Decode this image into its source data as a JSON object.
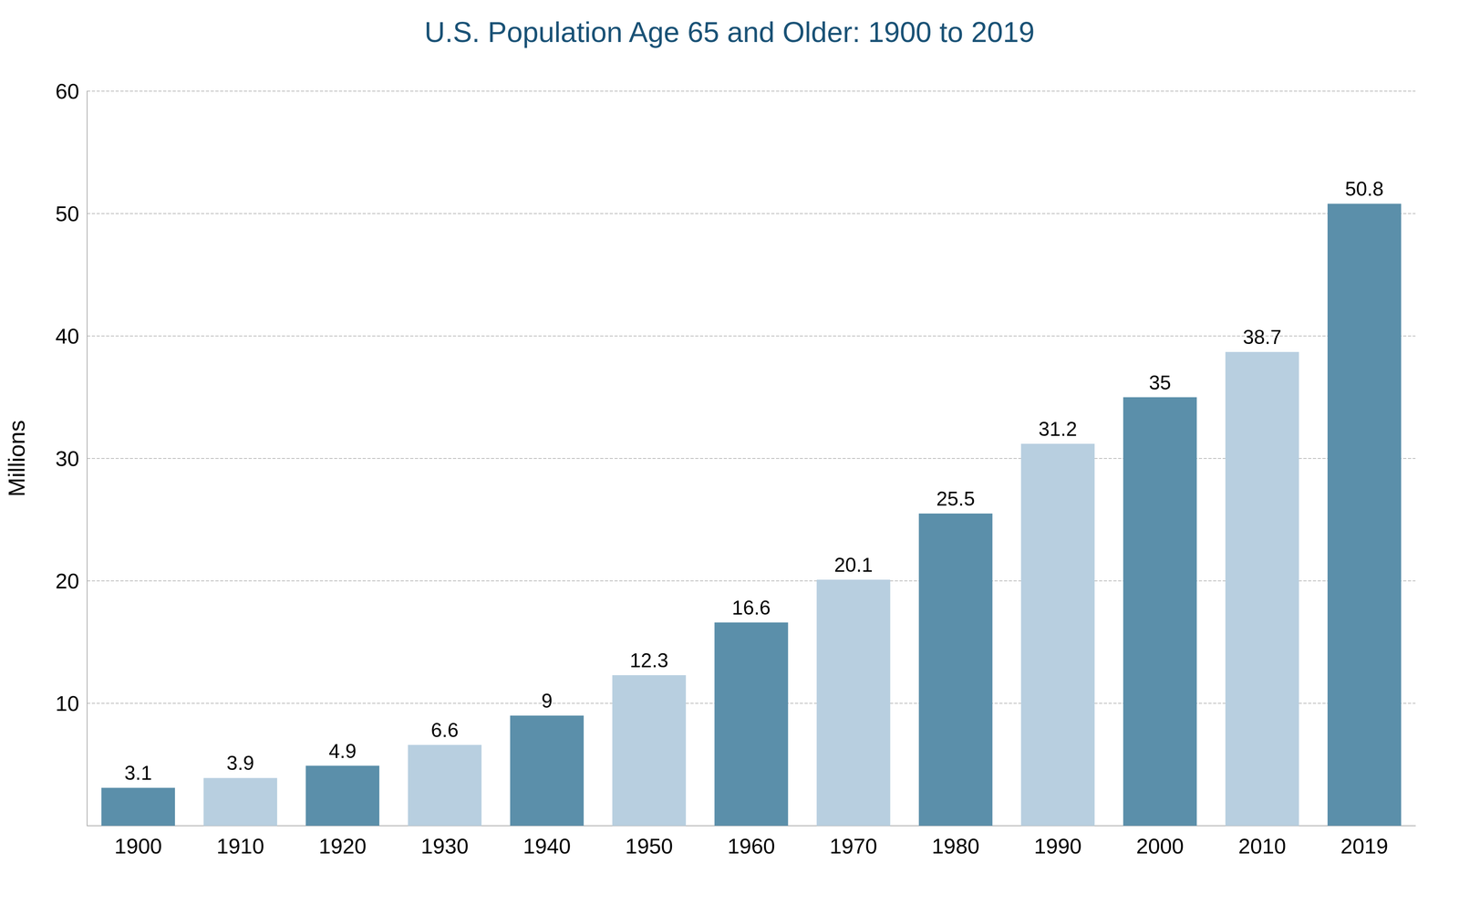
{
  "chart_data": {
    "type": "bar",
    "title": "U.S. Population Age 65 and Older: 1900 to 2019",
    "ylabel": "Millions",
    "categories": [
      "1900",
      "1910",
      "1920",
      "1930",
      "1940",
      "1950",
      "1960",
      "1970",
      "1980",
      "1990",
      "2000",
      "2010",
      "2019"
    ],
    "values": [
      3.1,
      3.9,
      4.9,
      6.6,
      9.0,
      12.3,
      16.6,
      20.1,
      25.5,
      31.2,
      35.0,
      38.7,
      50.8
    ],
    "colors": [
      "#5b8faa",
      "#b8cfe0",
      "#5b8faa",
      "#b8cfe0",
      "#5b8faa",
      "#b8cfe0",
      "#5b8faa",
      "#b8cfe0",
      "#5b8faa",
      "#b8cfe0",
      "#5b8faa",
      "#b8cfe0",
      "#5b8faa"
    ],
    "ylim": [
      0,
      60
    ],
    "yticks": [
      10,
      20,
      30,
      40,
      50,
      60
    ],
    "grid": true,
    "data_labels": true
  }
}
